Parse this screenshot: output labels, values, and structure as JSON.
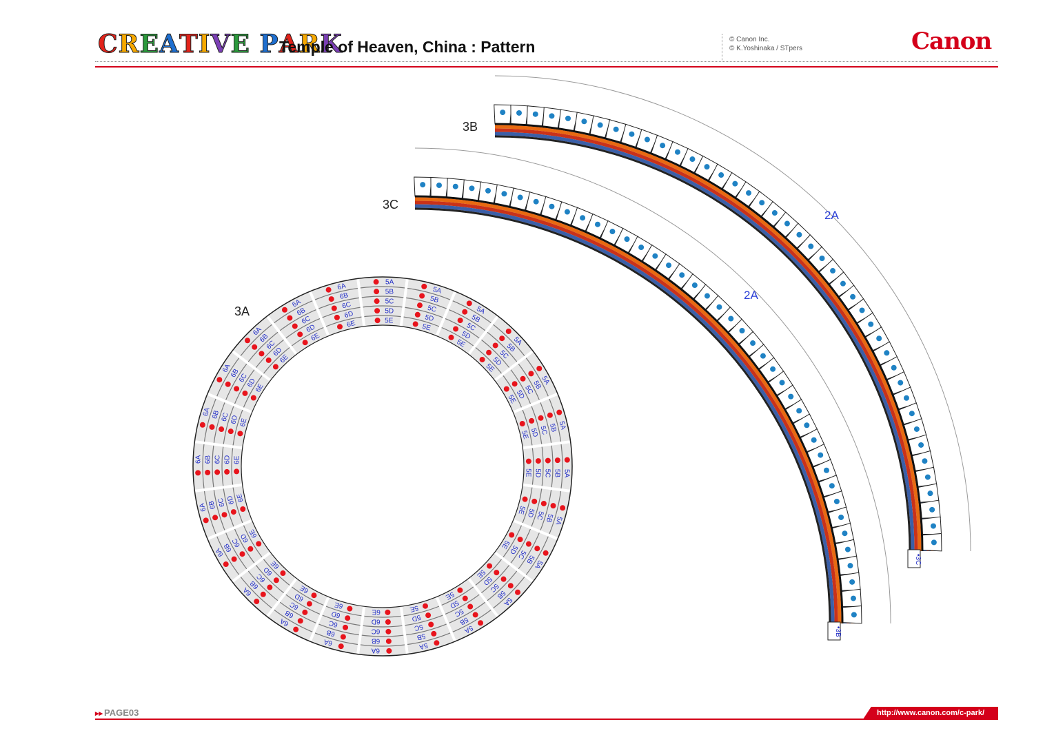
{
  "header": {
    "logo_letters": [
      {
        "ch": "C",
        "color": "#e2231a"
      },
      {
        "ch": "R",
        "color": "#f6a800"
      },
      {
        "ch": "E",
        "color": "#2b9a3c"
      },
      {
        "ch": "A",
        "color": "#1e6fd0"
      },
      {
        "ch": "T",
        "color": "#e2231a"
      },
      {
        "ch": "I",
        "color": "#f6a800"
      },
      {
        "ch": "V",
        "color": "#7b3fb5"
      },
      {
        "ch": "E",
        "color": "#2b9a3c"
      },
      {
        "ch": " ",
        "color": "#000"
      },
      {
        "ch": "P",
        "color": "#1e6fd0"
      },
      {
        "ch": "A",
        "color": "#e2231a"
      },
      {
        "ch": "R",
        "color": "#f6a800"
      },
      {
        "ch": "K",
        "color": "#7b3fb5"
      }
    ],
    "logo_text": "CREATIVE PARK",
    "title": "Temple of Heaven, China : Pattern",
    "copyright_1": "© Canon Inc.",
    "copyright_2": "© K.Yoshinaka  / STpers",
    "brand": "Canon"
  },
  "parts": {
    "ring_label": "3A",
    "arc_outer_label": "3B",
    "arc_inner_label": "3C",
    "arc_outer_glue": "2A",
    "arc_inner_glue": "2A",
    "arc_outer_end_tab": "3C",
    "arc_inner_end_tab": "3B",
    "ring_tabs_right": [
      "5A",
      "5B",
      "5C",
      "5D",
      "5E"
    ],
    "ring_tabs_left": [
      "6A",
      "6B",
      "6C",
      "6D",
      "6E"
    ]
  },
  "colors": {
    "accent_red": "#d4001a",
    "tab_dot_blue": "#1f82c4",
    "glue_dot_red": "#e8141c",
    "label_blue": "#2b3fd6",
    "stripe_blue": "#3b5fa8",
    "stripe_orange": "#e86a12"
  },
  "footer": {
    "page": "PAGE03",
    "url": "http://www.canon.com/c-park/"
  }
}
